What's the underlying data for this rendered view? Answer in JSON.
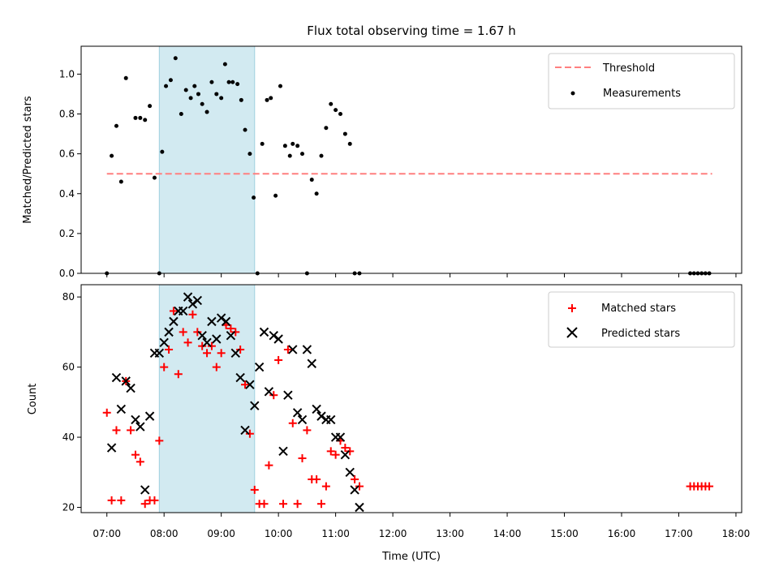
{
  "chart_data": [
    {
      "type": "scatter",
      "title": "Flux total observing time = 1.67 h",
      "xlabel": "",
      "ylabel": "Matched/Predicted stars",
      "xlim": [
        "06:33",
        "18:06"
      ],
      "ylim": [
        0.0,
        1.14
      ],
      "yticks": [
        "0.0",
        "0.2",
        "0.4",
        "0.6",
        "0.8",
        "1.0"
      ],
      "y_tick_values": [
        0.0,
        0.2,
        0.4,
        0.6,
        0.8,
        1.0
      ],
      "grid": false,
      "legend_position": "upper right",
      "shaded_span": {
        "start": "07:55",
        "end": "09:35",
        "color": "#add8e6"
      },
      "threshold": {
        "name": "Threshold",
        "value": 0.5,
        "start": "07:00",
        "end": "17:35",
        "color": "#ff7f7f"
      },
      "series": [
        {
          "name": "Measurements",
          "color": "#000000",
          "marker": "dot",
          "x": [
            "07:00",
            "07:05",
            "07:10",
            "07:15",
            "07:20",
            "07:30",
            "07:35",
            "07:40",
            "07:45",
            "07:50",
            "07:55",
            "07:58",
            "08:02",
            "08:07",
            "08:12",
            "08:18",
            "08:23",
            "08:28",
            "08:32",
            "08:36",
            "08:40",
            "08:45",
            "08:50",
            "08:55",
            "09:00",
            "09:04",
            "09:08",
            "09:12",
            "09:17",
            "09:21",
            "09:25",
            "09:30",
            "09:34",
            "09:38",
            "09:43",
            "09:48",
            "09:52",
            "09:57",
            "10:02",
            "10:07",
            "10:12",
            "10:15",
            "10:20",
            "10:25",
            "10:30",
            "10:35",
            "10:40",
            "10:45",
            "10:50",
            "10:55",
            "11:00",
            "11:05",
            "11:10",
            "11:15",
            "11:20",
            "11:25",
            "17:12",
            "17:16",
            "17:20",
            "17:24",
            "17:28",
            "17:32"
          ],
          "y": [
            0.0,
            0.59,
            0.74,
            0.46,
            0.98,
            0.78,
            0.78,
            0.77,
            0.84,
            0.48,
            0.0,
            0.61,
            0.94,
            0.97,
            1.08,
            0.8,
            0.92,
            0.88,
            0.94,
            0.9,
            0.85,
            0.81,
            0.96,
            0.9,
            0.88,
            1.05,
            0.96,
            0.96,
            0.95,
            0.87,
            0.72,
            0.6,
            0.38,
            0.0,
            0.65,
            0.87,
            0.88,
            0.39,
            0.94,
            0.64,
            0.59,
            0.65,
            0.64,
            0.6,
            0.0,
            0.47,
            0.4,
            0.59,
            0.73,
            0.85,
            0.82,
            0.8,
            0.7,
            0.65,
            0.0,
            0.0,
            0.0,
            0.0,
            0.0,
            0.0,
            0.0,
            0.0
          ]
        }
      ]
    },
    {
      "type": "scatter",
      "title": "",
      "xlabel": "Time (UTC)",
      "ylabel": "Count",
      "xlim": [
        "06:33",
        "18:06"
      ],
      "ylim": [
        18.5,
        83.5
      ],
      "yticks": [
        "20",
        "40",
        "60",
        "80"
      ],
      "y_tick_values": [
        20,
        40,
        60,
        80
      ],
      "x_tick_labels": [
        "07:00",
        "08:00",
        "09:00",
        "10:00",
        "11:00",
        "12:00",
        "13:00",
        "14:00",
        "15:00",
        "16:00",
        "17:00",
        "18:00"
      ],
      "x_tick_values": [
        "07:00",
        "08:00",
        "09:00",
        "10:00",
        "11:00",
        "12:00",
        "13:00",
        "14:00",
        "15:00",
        "16:00",
        "17:00",
        "18:00"
      ],
      "grid": false,
      "legend_position": "upper right",
      "shaded_span": {
        "start": "07:55",
        "end": "09:35",
        "color": "#add8e6"
      },
      "series": [
        {
          "name": "Matched stars",
          "color": "#ff0000",
          "marker": "plus",
          "x": [
            "07:00",
            "07:05",
            "07:10",
            "07:15",
            "07:20",
            "07:25",
            "07:30",
            "07:35",
            "07:40",
            "07:45",
            "07:50",
            "07:55",
            "08:00",
            "08:05",
            "08:10",
            "08:15",
            "08:20",
            "08:25",
            "08:30",
            "08:35",
            "08:40",
            "08:45",
            "08:50",
            "08:55",
            "09:00",
            "09:05",
            "09:10",
            "09:15",
            "09:20",
            "09:25",
            "09:30",
            "09:35",
            "09:40",
            "09:45",
            "09:50",
            "09:55",
            "10:00",
            "10:05",
            "10:10",
            "10:15",
            "10:20",
            "10:25",
            "10:30",
            "10:35",
            "10:40",
            "10:45",
            "10:50",
            "10:55",
            "11:00",
            "11:05",
            "11:10",
            "11:15",
            "11:20",
            "11:25",
            "17:12",
            "17:16",
            "17:20",
            "17:24",
            "17:28",
            "17:32"
          ],
          "y": [
            47,
            22,
            42,
            22,
            56,
            42,
            35,
            33,
            21,
            22,
            22,
            39,
            60,
            65,
            76,
            58,
            70,
            67,
            75,
            70,
            66,
            64,
            66,
            60,
            64,
            72,
            71,
            70,
            65,
            55,
            41,
            25,
            21,
            21,
            32,
            52,
            62,
            21,
            65,
            44,
            21,
            34,
            42,
            28,
            28,
            21,
            26,
            36,
            35,
            39,
            37,
            36,
            28,
            26,
            26,
            26,
            26,
            26,
            26,
            26
          ]
        },
        {
          "name": "Predicted stars",
          "color": "#000000",
          "marker": "x",
          "x": [
            "07:05",
            "07:10",
            "07:15",
            "07:20",
            "07:25",
            "07:30",
            "07:35",
            "07:40",
            "07:45",
            "07:50",
            "07:55",
            "08:00",
            "08:05",
            "08:10",
            "08:15",
            "08:20",
            "08:25",
            "08:30",
            "08:35",
            "08:40",
            "08:45",
            "08:50",
            "08:55",
            "09:00",
            "09:05",
            "09:10",
            "09:15",
            "09:20",
            "09:25",
            "09:30",
            "09:35",
            "09:40",
            "09:45",
            "09:50",
            "09:55",
            "10:00",
            "10:05",
            "10:10",
            "10:15",
            "10:20",
            "10:25",
            "10:30",
            "10:35",
            "10:40",
            "10:45",
            "10:50",
            "10:55",
            "11:00",
            "11:05",
            "11:10",
            "11:15",
            "11:20",
            "11:25"
          ],
          "y": [
            37,
            57,
            48,
            56,
            54,
            45,
            43,
            25,
            46,
            64,
            64,
            67,
            70,
            73,
            76,
            76,
            80,
            78,
            79,
            69,
            67,
            73,
            68,
            74,
            73,
            69,
            64,
            57,
            42,
            55,
            49,
            60,
            70,
            53,
            69,
            68,
            36,
            52,
            65,
            47,
            45,
            65,
            61,
            48,
            46,
            45,
            45,
            40,
            40,
            35,
            30,
            25,
            20
          ]
        }
      ]
    }
  ]
}
